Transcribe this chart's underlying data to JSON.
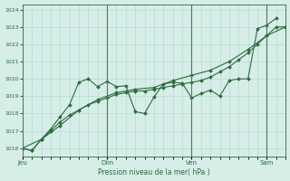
{
  "title": "",
  "xlabel": "Pression niveau de la mer( hPa )",
  "bg_color": "#d6ede8",
  "grid_color": "#b0d8cc",
  "line_color": "#2d6b3c",
  "vline_color": "#4a7a5a",
  "ylim": [
    1015.5,
    1024.3
  ],
  "yticks": [
    1016,
    1017,
    1018,
    1019,
    1020,
    1021,
    1022,
    1023,
    1024
  ],
  "xlim": [
    0,
    84
  ],
  "day_positions": [
    0,
    27,
    54,
    78
  ],
  "day_labels": [
    "Jeu",
    "Dim",
    "Ven",
    "Sam"
  ],
  "line1_x": [
    0,
    3,
    6,
    9,
    12,
    15,
    18,
    21,
    24,
    27,
    30,
    33,
    36,
    39,
    42,
    45,
    48,
    51,
    54,
    57,
    60,
    63,
    66,
    69,
    72,
    75,
    78,
    81,
    84
  ],
  "line1_y": [
    1016.0,
    1015.85,
    1016.5,
    1017.0,
    1017.5,
    1017.9,
    1018.2,
    1018.5,
    1018.7,
    1018.9,
    1019.1,
    1019.2,
    1019.3,
    1019.3,
    1019.4,
    1019.5,
    1019.6,
    1019.7,
    1019.8,
    1019.9,
    1020.1,
    1020.4,
    1020.7,
    1021.1,
    1021.5,
    1022.0,
    1022.5,
    1023.0,
    1023.0
  ],
  "line2_x": [
    0,
    3,
    6,
    9,
    12,
    15,
    18,
    21,
    24,
    27,
    30,
    33,
    36,
    39,
    42,
    45,
    48,
    51,
    54,
    57,
    60,
    63,
    66,
    69,
    72,
    75,
    78,
    81
  ],
  "line2_y": [
    1016.0,
    1015.85,
    1016.5,
    1017.1,
    1017.8,
    1018.5,
    1019.8,
    1020.0,
    1019.55,
    1019.85,
    1019.55,
    1019.6,
    1018.1,
    1018.0,
    1018.95,
    1019.7,
    1019.8,
    1019.75,
    1018.9,
    1019.15,
    1019.35,
    1019.0,
    1019.9,
    1020.0,
    1020.0,
    1022.9,
    1023.1,
    1023.5
  ],
  "line3_x": [
    0,
    6,
    12,
    18,
    24,
    30,
    36,
    42,
    48,
    54,
    60,
    66,
    72,
    78,
    84
  ],
  "line3_y": [
    1016.0,
    1016.5,
    1017.3,
    1018.2,
    1018.8,
    1019.2,
    1019.4,
    1019.5,
    1019.9,
    1020.2,
    1020.5,
    1021.0,
    1021.7,
    1022.5,
    1023.0
  ]
}
